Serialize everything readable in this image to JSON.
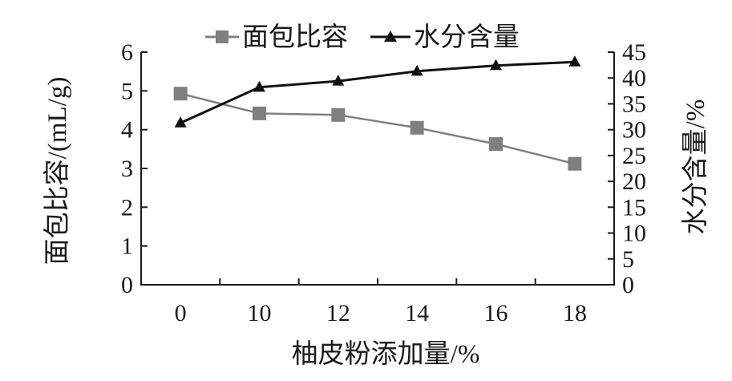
{
  "chart_data": {
    "type": "line",
    "categories": [
      "0",
      "10",
      "12",
      "14",
      "16",
      "18"
    ],
    "xlabel": "柚皮粉添加量/%",
    "ylabel": "面包比容/(mL/g)",
    "y2label": "水分含量/%",
    "ylim": [
      0,
      6
    ],
    "y2lim": [
      0,
      45
    ],
    "yticks": [
      0,
      1,
      2,
      3,
      4,
      5,
      6
    ],
    "y2ticks": [
      0,
      5,
      10,
      15,
      20,
      25,
      30,
      35,
      40,
      45
    ],
    "grid": false,
    "legend_position": "top",
    "series": [
      {
        "name": "面包比容",
        "y_axis": "left",
        "marker": "square",
        "color": "#7f7f7f",
        "values": [
          4.93,
          4.42,
          4.38,
          4.05,
          3.63,
          3.12
        ]
      },
      {
        "name": "水分含量",
        "y_axis": "right",
        "marker": "triangle",
        "color": "#111111",
        "values": [
          31.3,
          38.2,
          39.4,
          41.3,
          42.4,
          43.1
        ]
      }
    ]
  }
}
